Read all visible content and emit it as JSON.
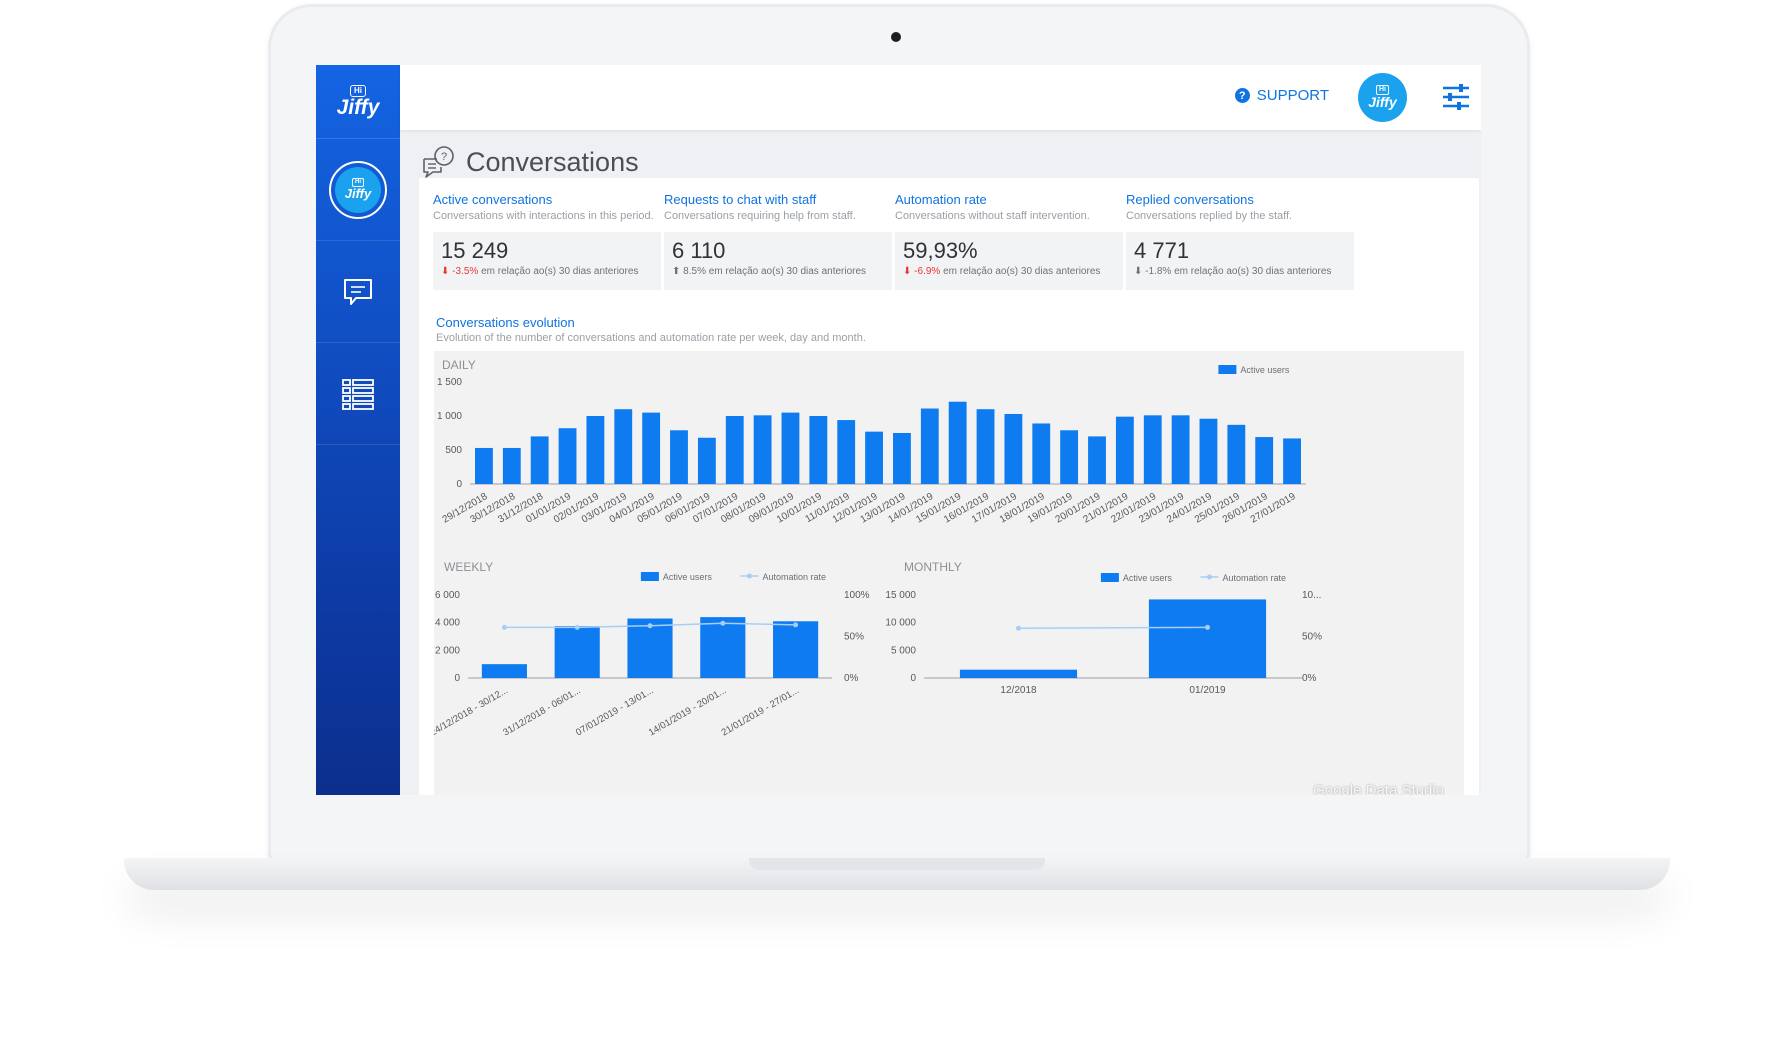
{
  "app": {
    "logo_hi": "Hi",
    "logo_brand": "Jiffy"
  },
  "topbar": {
    "support_label": "SUPPORT",
    "avatar_hi": "Hi",
    "avatar_brand": "Jiffy"
  },
  "page": {
    "title": "Conversations"
  },
  "kpis": [
    {
      "title": "Active conversations",
      "desc": "Conversations with interactions in this period.",
      "value": "15 249",
      "arrow": "⬇",
      "delta": "-3.5%",
      "delta_negative": true,
      "suffix": " em relação ao(s) 30 dias anteriores"
    },
    {
      "title": "Requests to chat with staff",
      "desc": "Conversations requiring help from staff.",
      "value": "6 110",
      "arrow": "⬆",
      "delta": "8.5%",
      "delta_negative": false,
      "suffix": " em relação ao(s) 30 dias anteriores"
    },
    {
      "title": "Automation rate",
      "desc": "Conversations without staff intervention.",
      "value": "59,93%",
      "arrow": "⬇",
      "delta": "-6.9%",
      "delta_negative": true,
      "suffix": " em relação ao(s) 30 dias anteriores"
    },
    {
      "title": "Replied conversations",
      "desc": "Conversations replied by the staff.",
      "value": "4 771",
      "arrow": "⬇",
      "delta": "-1.8%",
      "delta_negative": false,
      "suffix": " em relação ao(s) 30 dias anteriores"
    }
  ],
  "evolution": {
    "title": "Conversations evolution",
    "desc": "Evolution of the number of conversations and automation rate per week, day and month."
  },
  "watermark": "Google Data Studio",
  "colors": {
    "bar": "#0f7bf0",
    "line": "#a7cef7",
    "accent": "#0f74e0"
  },
  "chart_data": [
    {
      "type": "bar",
      "title": "DAILY",
      "legend": [
        "Active users"
      ],
      "legend_position": "top-right",
      "categories": [
        "29/12/2018",
        "30/12/2018",
        "31/12/2018",
        "01/01/2019",
        "02/01/2019",
        "03/01/2019",
        "04/01/2019",
        "05/01/2019",
        "06/01/2019",
        "07/01/2019",
        "08/01/2019",
        "09/01/2019",
        "10/01/2019",
        "11/01/2019",
        "12/01/2019",
        "13/01/2019",
        "14/01/2019",
        "15/01/2019",
        "16/01/2019",
        "17/01/2019",
        "18/01/2019",
        "19/01/2019",
        "20/01/2019",
        "21/01/2019",
        "22/01/2019",
        "23/01/2019",
        "24/01/2019",
        "25/01/2019",
        "26/01/2019",
        "27/01/2019"
      ],
      "series": [
        {
          "name": "Active users",
          "values": [
            530,
            530,
            700,
            820,
            1000,
            1100,
            1050,
            790,
            680,
            1000,
            1010,
            1050,
            1000,
            940,
            770,
            750,
            1110,
            1210,
            1100,
            1030,
            890,
            790,
            700,
            990,
            1010,
            1010,
            960,
            870,
            690,
            670
          ]
        }
      ],
      "yticks": [
        "0",
        "500",
        "1 000",
        "1 500"
      ],
      "ylim": [
        0,
        1500
      ],
      "grid": false
    },
    {
      "type": "bar",
      "title": "WEEKLY",
      "legend": [
        "Active users",
        "Automation rate"
      ],
      "legend_position": "top-right",
      "categories": [
        "24/12/2018 - 30/12...",
        "31/12/2018 - 06/01...",
        "07/01/2019 - 13/01...",
        "14/01/2019 - 20/01...",
        "21/01/2019 - 27/01..."
      ],
      "series": [
        {
          "name": "Active users",
          "axis": "left",
          "values": [
            1000,
            3750,
            4300,
            4400,
            4100
          ]
        },
        {
          "name": "Automation rate",
          "axis": "right",
          "type": "line",
          "values": [
            0.61,
            0.61,
            0.63,
            0.66,
            0.64
          ]
        }
      ],
      "yticks": [
        "0",
        "2 000",
        "4 000",
        "6 000"
      ],
      "ylim": [
        0,
        6000
      ],
      "y2ticks": [
        "0%",
        "50%",
        "100%"
      ],
      "y2lim": [
        0,
        1
      ]
    },
    {
      "type": "bar",
      "title": "MONTHLY",
      "legend": [
        "Active users",
        "Automation rate"
      ],
      "legend_position": "top-right",
      "categories": [
        "12/2018",
        "01/2019"
      ],
      "series": [
        {
          "name": "Active users",
          "axis": "left",
          "values": [
            1500,
            14200
          ]
        },
        {
          "name": "Automation rate",
          "axis": "right",
          "type": "line",
          "values": [
            0.6,
            0.61
          ]
        }
      ],
      "yticks": [
        "0",
        "5 000",
        "10 000",
        "15 000"
      ],
      "ylim": [
        0,
        15000
      ],
      "y2ticks": [
        "0%",
        "50%",
        "10..."
      ],
      "y2lim": [
        0,
        1
      ]
    }
  ]
}
